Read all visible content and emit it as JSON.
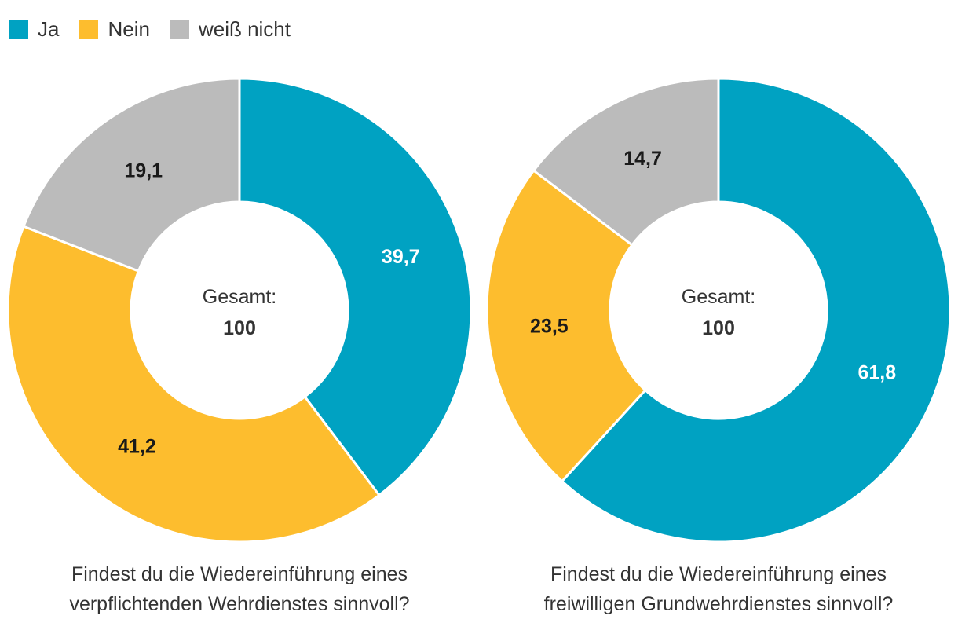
{
  "legend": [
    {
      "label": "Ja",
      "color": "#00a2c2"
    },
    {
      "label": "Nein",
      "color": "#fdbd2e"
    },
    {
      "label": "weiß nicht",
      "color": "#bbbbbb"
    }
  ],
  "chart_data": [
    {
      "type": "pie",
      "variant": "donut",
      "categories": [
        "Ja",
        "Nein",
        "weiß nicht"
      ],
      "values": [
        39.7,
        41.2,
        19.1
      ],
      "value_labels": [
        "39,7",
        "41,2",
        "19,1"
      ],
      "center_label": "Gesamt:",
      "center_value": "100",
      "title_lines": [
        "Findest du die Wiedereinführung eines",
        "verpflichtenden Wehrdienstes sinnvoll?"
      ]
    },
    {
      "type": "pie",
      "variant": "donut",
      "categories": [
        "Ja",
        "Nein",
        "weiß nicht"
      ],
      "values": [
        61.8,
        23.5,
        14.7
      ],
      "value_labels": [
        "61,8",
        "23,5",
        "14,7"
      ],
      "center_label": "Gesamt:",
      "center_value": "100",
      "title_lines": [
        "Findest du die Wiedereinführung eines",
        "freiwilligen Grundwehrdienstes sinnvoll?"
      ]
    }
  ]
}
